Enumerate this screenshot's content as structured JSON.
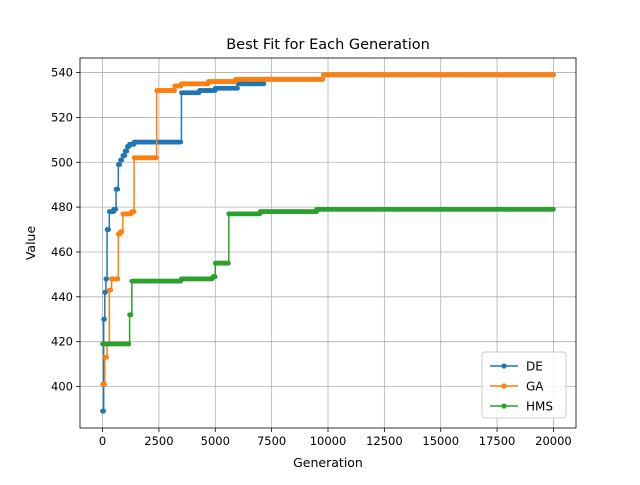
{
  "chart_data": {
    "type": "line",
    "title": "Best Fit for Each Generation",
    "xlabel": "Generation",
    "ylabel": "Value",
    "xlim": [
      -1000,
      21000
    ],
    "ylim": [
      381.5,
      546.5
    ],
    "xticks": [
      0,
      2500,
      5000,
      7500,
      10000,
      12500,
      15000,
      17500,
      20000
    ],
    "xtick_labels": [
      "0",
      "2500",
      "5000",
      "7500",
      "10000",
      "12500",
      "15000",
      "17500",
      "20000"
    ],
    "yticks": [
      400,
      420,
      440,
      460,
      480,
      500,
      520,
      540
    ],
    "ytick_labels": [
      "400",
      "420",
      "440",
      "460",
      "480",
      "500",
      "520",
      "540"
    ],
    "grid": true,
    "legend_position": "lower-right",
    "series": [
      {
        "name": "DE",
        "color": "#1f77b4",
        "x": [
          0,
          50,
          100,
          150,
          200,
          300,
          500,
          600,
          700,
          800,
          900,
          1000,
          1100,
          1200,
          1400,
          3500,
          4300,
          5000,
          6000,
          7200,
          9800,
          20000
        ],
        "y": [
          389,
          430,
          442,
          448,
          470,
          478,
          479,
          488,
          499,
          501,
          503,
          505,
          507,
          508,
          509,
          531,
          532,
          533,
          535,
          537,
          539,
          539
        ]
      },
      {
        "name": "GA",
        "color": "#ff7f0e",
        "x": [
          0,
          100,
          200,
          300,
          400,
          700,
          800,
          900,
          1300,
          1400,
          2300,
          2400,
          3200,
          3500,
          4700,
          5900,
          8000,
          9800,
          20000
        ],
        "y": [
          401,
          413,
          419,
          443,
          448,
          468,
          469,
          477,
          478,
          502,
          502,
          532,
          534,
          535,
          536,
          537,
          537,
          539,
          539
        ]
      },
      {
        "name": "HMS",
        "color": "#2ca02c",
        "x": [
          0,
          600,
          1200,
          1300,
          3500,
          4900,
          5000,
          5600,
          7000,
          9500,
          20000
        ],
        "y": [
          419,
          419,
          432,
          447,
          448,
          449,
          455,
          477,
          478,
          479,
          479
        ]
      }
    ]
  }
}
